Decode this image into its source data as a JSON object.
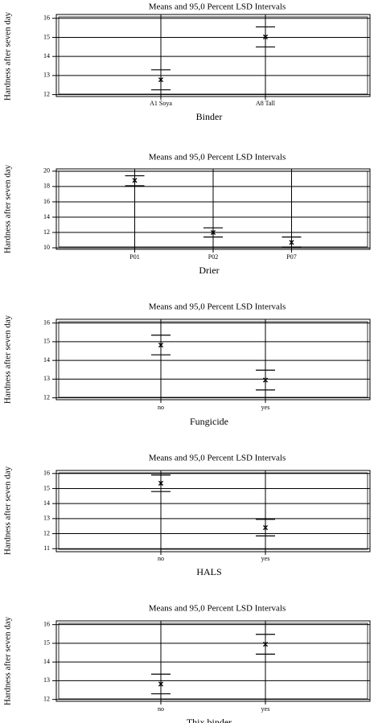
{
  "chart_data": [
    {
      "type": "error-bar",
      "title": "Means and 95,0 Percent LSD Intervals",
      "xlabel": "Binder",
      "ylabel": "Hardness after seven day",
      "categories": [
        "A1 Soya",
        "A8 Tall"
      ],
      "means": [
        12.78,
        15.02
      ],
      "lower": [
        12.25,
        14.5
      ],
      "upper": [
        13.3,
        15.55
      ],
      "ylim": [
        11.9,
        16.2
      ],
      "yticks": [
        "12",
        "13",
        "14",
        "15",
        "16"
      ],
      "grid": true
    },
    {
      "type": "error-bar",
      "title": "Means and 95,0 Percent LSD Intervals",
      "xlabel": "Drier",
      "ylabel": "Hardness after seven day",
      "categories": [
        "P01",
        "P02",
        "P07"
      ],
      "means": [
        18.8,
        12.0,
        10.7
      ],
      "lower": [
        18.1,
        11.4,
        10.1
      ],
      "upper": [
        19.4,
        12.6,
        11.4
      ],
      "ylim": [
        9.8,
        20.3
      ],
      "yticks": [
        "10",
        "12",
        "14",
        "16",
        "18",
        "20"
      ],
      "grid": true
    },
    {
      "type": "error-bar",
      "title": "Means and 95,0 Percent LSD Intervals",
      "xlabel": "Fungicide",
      "ylabel": "Hardness after seven day",
      "categories": [
        "no",
        "yes"
      ],
      "means": [
        14.82,
        12.95
      ],
      "lower": [
        14.3,
        12.42
      ],
      "upper": [
        15.35,
        13.48
      ],
      "ylim": [
        11.9,
        16.2
      ],
      "yticks": [
        "12",
        "13",
        "14",
        "15",
        "16"
      ],
      "grid": true
    },
    {
      "type": "error-bar",
      "title": "Means and 95,0 Percent LSD Intervals",
      "xlabel": "HALS",
      "ylabel": "Hardness after seven day",
      "categories": [
        "no",
        "yes"
      ],
      "means": [
        15.35,
        12.4
      ],
      "lower": [
        14.8,
        11.85
      ],
      "upper": [
        15.9,
        12.95
      ],
      "ylim": [
        10.8,
        16.2
      ],
      "yticks": [
        "11",
        "12",
        "13",
        "14",
        "15",
        "16"
      ],
      "grid": true
    },
    {
      "type": "error-bar",
      "title": "Means and 95,0 Percent LSD Intervals",
      "xlabel": "Thix binder",
      "ylabel": "Hardness after seven day",
      "categories": [
        "no",
        "yes"
      ],
      "means": [
        12.82,
        14.95
      ],
      "lower": [
        12.3,
        14.42
      ],
      "upper": [
        13.35,
        15.48
      ],
      "ylim": [
        11.9,
        16.2
      ],
      "yticks": [
        "12",
        "13",
        "14",
        "15",
        "16"
      ],
      "grid": true
    }
  ]
}
